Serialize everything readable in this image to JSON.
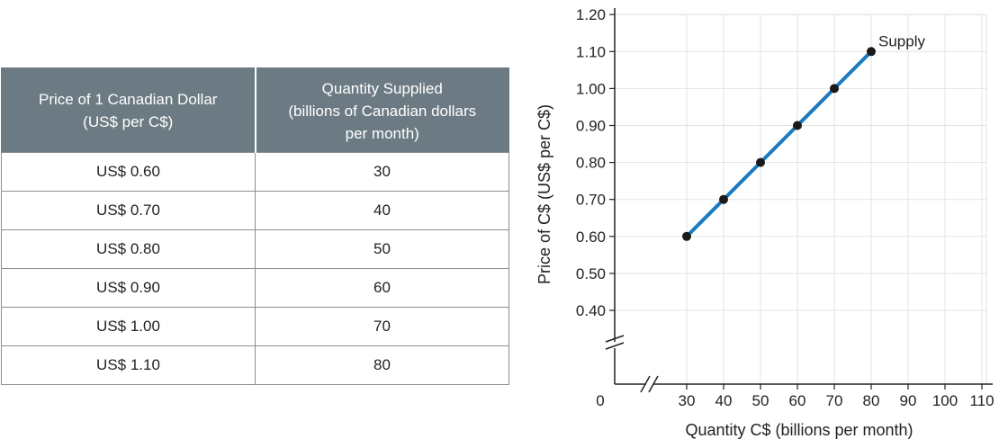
{
  "table": {
    "headers": [
      [
        "Price of 1 Canadian Dollar",
        "(US$ per C$)"
      ],
      [
        "Quantity Supplied",
        "(billions of Canadian dollars",
        "per month)"
      ]
    ],
    "rows": [
      [
        "US$ 0.60",
        "30"
      ],
      [
        "US$ 0.70",
        "40"
      ],
      [
        "US$ 0.80",
        "50"
      ],
      [
        "US$ 0.90",
        "60"
      ],
      [
        "US$ 1.00",
        "70"
      ],
      [
        "US$ 1.10",
        "80"
      ]
    ]
  },
  "chart_data": {
    "type": "line",
    "series": [
      {
        "name": "Supply",
        "color": "#1a7ac0",
        "marker_color": "#1a1a1a",
        "x": [
          30,
          40,
          50,
          60,
          70,
          80
        ],
        "y": [
          0.6,
          0.7,
          0.8,
          0.9,
          1.0,
          1.1
        ]
      }
    ],
    "xlabel": "Quantity C$ (billions per month)",
    "ylabel": "Price of C$ (US$ per C$)",
    "xlim": [
      30,
      110
    ],
    "ylim": [
      0.4,
      1.2
    ],
    "x_ticks": [
      "30",
      "40",
      "50",
      "60",
      "70",
      "80",
      "90",
      "100",
      "110"
    ],
    "y_ticks": [
      "0.40",
      "0.50",
      "0.60",
      "0.70",
      "0.80",
      "0.90",
      "1.00",
      "1.10",
      "1.20"
    ],
    "origin_label": "0",
    "axis_breaks": true,
    "grid": true
  }
}
